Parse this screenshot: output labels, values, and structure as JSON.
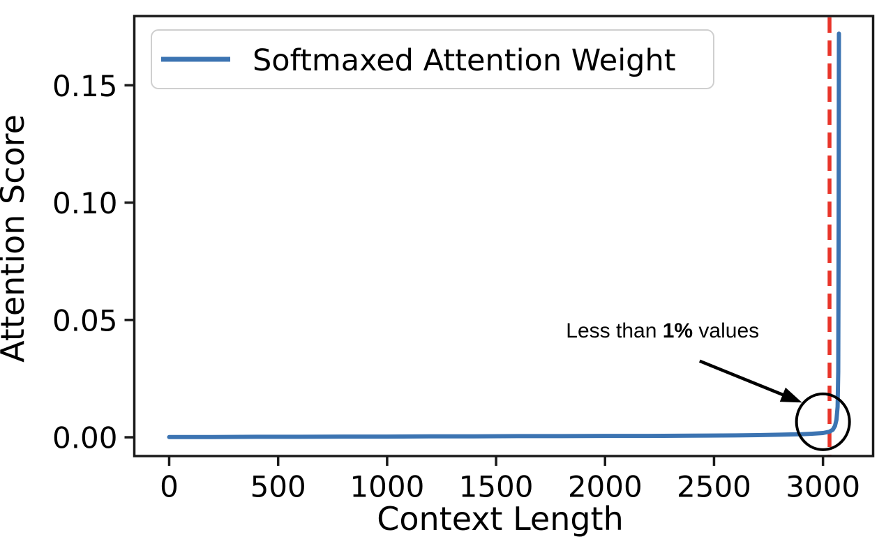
{
  "figure": {
    "background": "#ffffff",
    "spine_color": "#1a1a1a"
  },
  "chart_data": {
    "type": "line",
    "title": "",
    "xlabel": "Context Length",
    "ylabel": "Attention Score",
    "xlim": [
      -160,
      3230
    ],
    "ylim": [
      -0.008,
      0.1795
    ],
    "x_ticks": [
      "0",
      "500",
      "1000",
      "1500",
      "2000",
      "2500",
      "3000"
    ],
    "y_ticks": [
      "0.00",
      "0.05",
      "0.10",
      "0.15"
    ],
    "grid": false,
    "legend": {
      "position": "upper left",
      "label": "Softmaxed Attention Weight",
      "line_color": "#3c74b2"
    },
    "series": [
      {
        "name": "Softmaxed Attention Weight",
        "color": "#3c74b2",
        "points": [
          [
            0,
            0.0001
          ],
          [
            200,
            0.0001
          ],
          [
            400,
            0.0002
          ],
          [
            600,
            0.0002
          ],
          [
            800,
            0.0003
          ],
          [
            1000,
            0.0003
          ],
          [
            1200,
            0.0004
          ],
          [
            1400,
            0.0004
          ],
          [
            1600,
            0.0005
          ],
          [
            1800,
            0.0005
          ],
          [
            2000,
            0.0006
          ],
          [
            2200,
            0.0006
          ],
          [
            2400,
            0.0007
          ],
          [
            2600,
            0.0008
          ],
          [
            2700,
            0.0009
          ],
          [
            2800,
            0.0011
          ],
          [
            2900,
            0.0013
          ],
          [
            2950,
            0.0015
          ],
          [
            3000,
            0.0018
          ],
          [
            3030,
            0.0024
          ],
          [
            3045,
            0.0032
          ],
          [
            3055,
            0.0048
          ],
          [
            3062,
            0.0075
          ],
          [
            3067,
            0.013
          ],
          [
            3070,
            0.028
          ],
          [
            3072,
            0.09
          ],
          [
            3073,
            0.172
          ]
        ]
      }
    ],
    "vline": {
      "x": 3030,
      "color": "#e8352a",
      "style": "dashed"
    },
    "annotation": {
      "text_prefix": "Less than ",
      "text_bold": "1%",
      "text_suffix": " values",
      "text_pos": [
        2264,
        0.0425
      ],
      "arrow_start": [
        2434,
        0.0325
      ],
      "arrow_end": [
        2904,
        0.0148
      ],
      "circle_center": [
        3000,
        0.0066
      ],
      "circle_radius_px": 38,
      "color": "#000000"
    }
  }
}
